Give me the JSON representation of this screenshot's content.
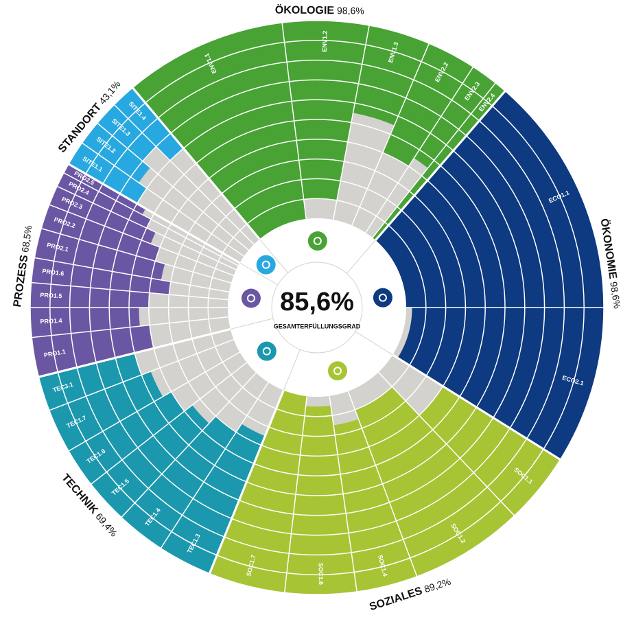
{
  "center": {
    "value_text": "85,6%",
    "caption": "GESAMTERFÜLLUNGSGRAD"
  },
  "chart_data": {
    "type": "radial-bar",
    "ylim": [
      0,
      100
    ],
    "empty_color": "#d3d2ce",
    "categories": [
      {
        "name": "ÖKOLOGIE",
        "score": "98,6%",
        "color": "#48a334",
        "criteria": [
          {
            "label": "ENV1.1",
            "value": 100
          },
          {
            "label": "ENV1.2",
            "value": 90
          },
          {
            "label": "ENV1.3",
            "value": 45
          },
          {
            "label": "ENV2.2",
            "value": 60
          },
          {
            "label": "ENV2.3",
            "value": 55
          },
          {
            "label": "ENV2.4",
            "value": 100
          }
        ]
      },
      {
        "name": "ÖKONOMIE",
        "score": "98,6%",
        "color": "#0d3a80",
        "criteria": [
          {
            "label": "ECO1.1",
            "value": 100
          },
          {
            "label": "ECO2.1",
            "value": 97
          }
        ]
      },
      {
        "name": "SOZIALES",
        "score": "89,2%",
        "color": "#a7c435",
        "criteria": [
          {
            "label": "SOC1.1",
            "value": 70
          },
          {
            "label": "SOC1.2",
            "value": 90
          },
          {
            "label": "SOC1.4",
            "value": 85
          },
          {
            "label": "SOC1.6",
            "value": 95
          },
          {
            "label": "SOC1.7",
            "value": 100
          }
        ]
      },
      {
        "name": "TECHNIK",
        "score": "69,4%",
        "color": "#1b98ad",
        "criteria": [
          {
            "label": "TEC1.3",
            "value": 75
          },
          {
            "label": "TEC1.4",
            "value": 70
          },
          {
            "label": "TEC1.5",
            "value": 65
          },
          {
            "label": "TEC1.6",
            "value": 60
          },
          {
            "label": "TEC1.7",
            "value": 55
          },
          {
            "label": "TEC3.1",
            "value": 50
          }
        ]
      },
      {
        "name": "PROZESS",
        "score": "68,5%",
        "color": "#6a56a3",
        "criteria": [
          {
            "label": "PRO1.1",
            "value": 60
          },
          {
            "label": "PRO1.4",
            "value": 55
          },
          {
            "label": "PRO1.5",
            "value": 60
          },
          {
            "label": "PRO1.6",
            "value": 70
          },
          {
            "label": "PRO2.1",
            "value": 65
          },
          {
            "label": "PRO2.2",
            "value": 60
          },
          {
            "label": "PRO2.3",
            "value": 55
          },
          {
            "label": "PRO2.4",
            "value": 50
          },
          {
            "label": "PRO2.5",
            "value": 45
          }
        ]
      },
      {
        "name": "STANDORT",
        "score": "43,1%",
        "color": "#28a8e0",
        "criteria": [
          {
            "label": "SITE1.1",
            "value": 40
          },
          {
            "label": "SITE1.2",
            "value": 35
          },
          {
            "label": "SITE1.3",
            "value": 30
          },
          {
            "label": "SITE1.4",
            "value": 40
          }
        ]
      }
    ]
  }
}
